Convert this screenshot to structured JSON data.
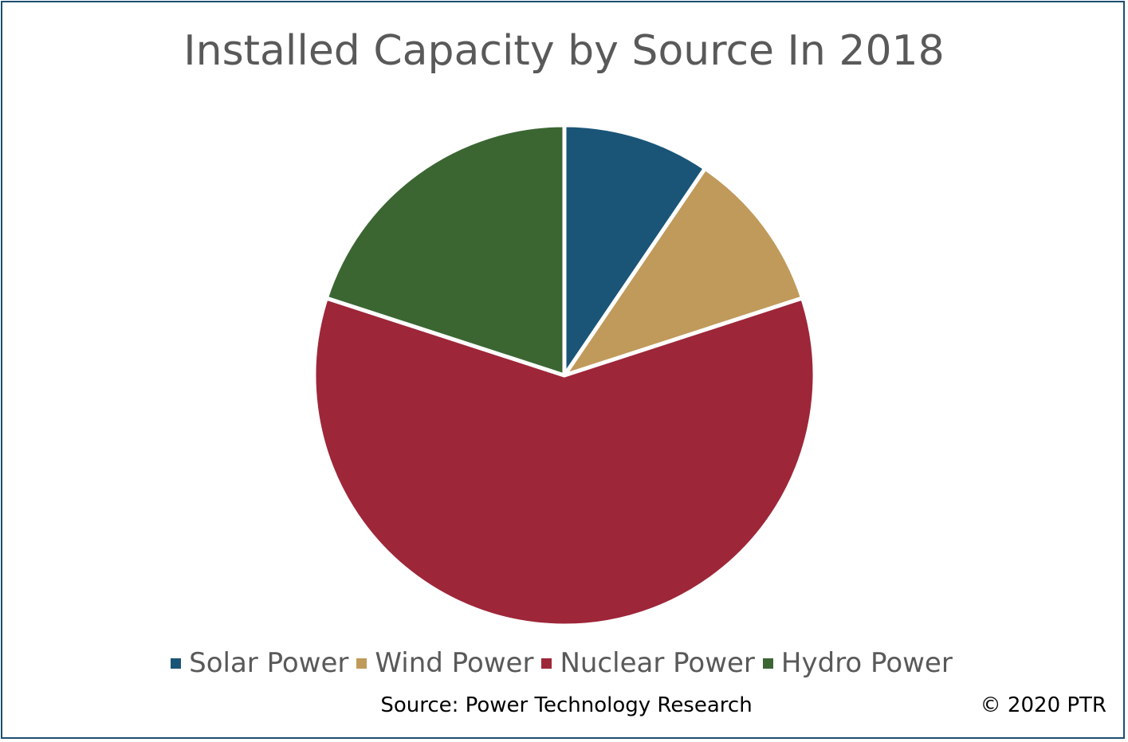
{
  "chart_data": {
    "type": "pie",
    "title": "Installed Capacity by Source In 2018",
    "categories": [
      "Solar Power",
      "Wind Power",
      "Nuclear Power",
      "Hydro Power"
    ],
    "values": [
      9.5,
      10.5,
      60,
      20
    ],
    "colors": [
      "#1a5578",
      "#c09a5b",
      "#9e2639",
      "#3b6632"
    ],
    "legend_position": "bottom",
    "start_angle": "top, clockwise"
  },
  "footer": {
    "source": "Source: Power Technology Research",
    "copyright": "© 2020 PTR"
  }
}
